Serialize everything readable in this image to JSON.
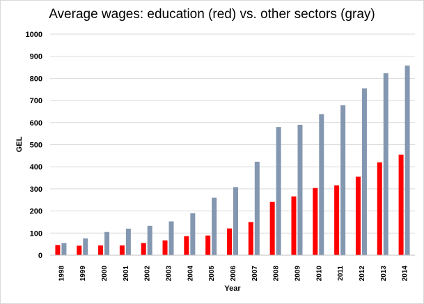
{
  "chart_data": {
    "type": "bar",
    "title": "Average wages: education (red) vs. other sectors (gray)",
    "xlabel": "Year",
    "ylabel": "GEL",
    "ylim": [
      0,
      1000
    ],
    "yticks": [
      0,
      100,
      200,
      300,
      400,
      500,
      600,
      700,
      800,
      900,
      1000
    ],
    "grid": true,
    "legend": "none",
    "categories": [
      "1998",
      "1999",
      "2000",
      "2001",
      "2002",
      "2003",
      "2004",
      "2005",
      "2006",
      "2007",
      "2008",
      "2009",
      "2010",
      "2011",
      "2012",
      "2013",
      "2014"
    ],
    "series": [
      {
        "color": "#ff0000",
        "values": [
          46,
          43,
          44,
          44,
          55,
          67,
          86,
          89,
          121,
          150,
          241,
          266,
          304,
          316,
          355,
          420,
          455
        ]
      },
      {
        "color": "#8497b0",
        "values": [
          55,
          76,
          105,
          120,
          133,
          153,
          190,
          260,
          308,
          423,
          580,
          590,
          638,
          678,
          755,
          823,
          858
        ]
      }
    ]
  }
}
